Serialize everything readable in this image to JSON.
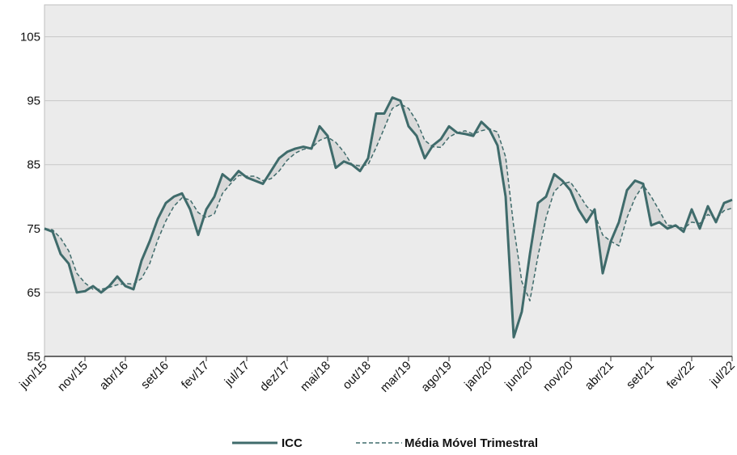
{
  "chart_data": {
    "type": "line",
    "y_ticks": [
      55,
      65,
      75,
      85,
      95,
      105
    ],
    "ylim": [
      55,
      110
    ],
    "x_tick_labels": [
      "jun/15",
      "nov/15",
      "abr/16",
      "set/16",
      "fev/17",
      "jul/17",
      "dez/17",
      "mai/18",
      "out/18",
      "mar/19",
      "ago/19",
      "jan/20",
      "jun/20",
      "nov/20",
      "abr/21",
      "set/21",
      "fev/22",
      "jul/22"
    ],
    "grid": true,
    "legend_position": "bottom",
    "colors": {
      "series": "#3f6b6b",
      "plot_bg": "#ebebeb",
      "grid": "#c8c8c8",
      "shade": "#d9d9d9"
    },
    "series": [
      {
        "name": "ICC",
        "style": "solid",
        "values": [
          75.0,
          74.5,
          71.0,
          69.5,
          65.0,
          65.2,
          66.0,
          65.0,
          66.0,
          67.5,
          66.0,
          65.5,
          70.0,
          73.0,
          76.5,
          79.0,
          80.0,
          80.5,
          78.0,
          74.0,
          78.0,
          80.0,
          83.5,
          82.5,
          84.0,
          83.0,
          82.5,
          82.0,
          84.0,
          86.0,
          87.0,
          87.5,
          87.8,
          87.5,
          91.0,
          89.5,
          84.5,
          85.5,
          85.0,
          84.0,
          86.0,
          93.0,
          93.0,
          95.5,
          95.0,
          91.0,
          89.5,
          86.0,
          88.0,
          89.0,
          91.0,
          90.0,
          89.8,
          89.5,
          91.7,
          90.5,
          88.0,
          80.0,
          58.0,
          62.0,
          71.0,
          79.0,
          80.0,
          83.5,
          82.5,
          81.0,
          78.0,
          76.0,
          78.0,
          68.0,
          73.0,
          76.0,
          81.0,
          82.5,
          82.0,
          75.5,
          76.0,
          75.0,
          75.5,
          74.5,
          78.0,
          75.0,
          78.5,
          76.0,
          79.0,
          79.5
        ]
      },
      {
        "name": "Média Móvel Trimestral",
        "style": "dashed",
        "values": [
          75.0,
          74.8,
          73.5,
          71.5,
          68.0,
          66.5,
          65.5,
          65.5,
          65.8,
          66.2,
          66.4,
          66.3,
          67.2,
          69.5,
          73.2,
          76.2,
          78.5,
          79.8,
          79.5,
          77.5,
          76.7,
          77.3,
          80.5,
          82.0,
          83.3,
          83.2,
          83.2,
          82.5,
          82.8,
          84.0,
          85.7,
          86.8,
          87.4,
          87.6,
          88.8,
          89.3,
          88.5,
          87.0,
          85.0,
          84.8,
          85.0,
          87.7,
          90.7,
          93.8,
          94.5,
          93.8,
          91.8,
          88.8,
          87.8,
          87.7,
          89.3,
          90.0,
          90.3,
          89.8,
          90.3,
          90.6,
          90.1,
          86.2,
          75.3,
          66.7,
          63.7,
          70.7,
          76.7,
          80.8,
          82.0,
          82.3,
          80.5,
          78.5,
          77.3,
          74.0,
          73.0,
          72.3,
          76.7,
          79.8,
          81.8,
          80.0,
          77.8,
          75.5,
          75.5,
          75.0,
          76.0,
          75.8,
          77.2,
          76.5,
          77.8,
          78.2
        ]
      }
    ]
  }
}
